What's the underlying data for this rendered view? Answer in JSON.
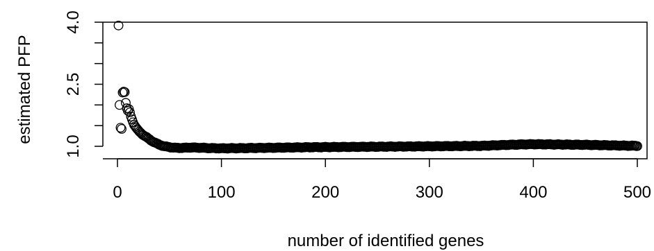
{
  "chart_data": {
    "type": "scatter",
    "title": "",
    "xlabel": "number of identified genes",
    "ylabel": "estimated PFP",
    "xlim": [
      0,
      500
    ],
    "ylim": [
      0.9,
      4.0
    ],
    "x_ticks": [
      0,
      100,
      200,
      300,
      400,
      500
    ],
    "x_tick_labels": [
      "0",
      "100",
      "200",
      "300",
      "400",
      "500"
    ],
    "y_ticks": [
      1.0,
      1.5,
      2.0,
      2.5,
      3.0,
      3.5,
      4.0
    ],
    "y_tick_labels": [
      "1.0",
      "",
      "",
      "2.5",
      "",
      "",
      "4.0"
    ],
    "grid": false,
    "legend": "none",
    "point_style": "open-circle",
    "point_color": "#000000",
    "anchors": [
      [
        1,
        3.92
      ],
      [
        2,
        2.0
      ],
      [
        3,
        1.45
      ],
      [
        4,
        1.42
      ],
      [
        5,
        2.3
      ],
      [
        6,
        2.32
      ],
      [
        7,
        2.31
      ],
      [
        8,
        2.05
      ],
      [
        9,
        1.92
      ],
      [
        10,
        1.86
      ],
      [
        11,
        1.9
      ],
      [
        12,
        1.82
      ],
      [
        13,
        1.72
      ],
      [
        14,
        1.65
      ],
      [
        15,
        1.58
      ],
      [
        16,
        1.52
      ],
      [
        18,
        1.45
      ],
      [
        20,
        1.38
      ],
      [
        22,
        1.33
      ],
      [
        25,
        1.27
      ],
      [
        28,
        1.22
      ],
      [
        30,
        1.18
      ],
      [
        33,
        1.13
      ],
      [
        36,
        1.09
      ],
      [
        40,
        1.04
      ],
      [
        45,
        1.0
      ],
      [
        50,
        0.98
      ],
      [
        55,
        0.965
      ],
      [
        60,
        0.96
      ],
      [
        70,
        0.97
      ],
      [
        80,
        0.965
      ],
      [
        90,
        0.955
      ],
      [
        100,
        0.95
      ],
      [
        120,
        0.955
      ],
      [
        150,
        0.965
      ],
      [
        180,
        0.975
      ],
      [
        200,
        0.98
      ],
      [
        250,
        0.99
      ],
      [
        300,
        1.0
      ],
      [
        350,
        1.01
      ],
      [
        370,
        1.03
      ],
      [
        390,
        1.045
      ],
      [
        400,
        1.05
      ],
      [
        420,
        1.045
      ],
      [
        450,
        1.035
      ],
      [
        480,
        1.02
      ],
      [
        500,
        1.01
      ]
    ]
  }
}
